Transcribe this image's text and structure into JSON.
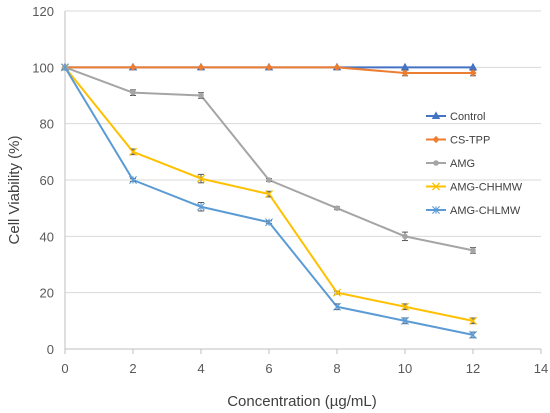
{
  "chart_data": {
    "type": "line",
    "xlabel": "Concentration (µg/mL)",
    "ylabel": "Cell Viability (%)",
    "xlim": [
      0,
      14
    ],
    "ylim": [
      0,
      120
    ],
    "xticks": [
      0,
      2,
      4,
      6,
      8,
      10,
      12,
      14
    ],
    "yticks": [
      0,
      20,
      40,
      60,
      80,
      100,
      120
    ],
    "grid": "horizontal",
    "legend_position": "right",
    "x": [
      0,
      2,
      4,
      6,
      8,
      10,
      12
    ],
    "series": [
      {
        "name": "Control",
        "color": "#4472C4",
        "marker": "triangle",
        "values": [
          100,
          100,
          100,
          100,
          100,
          100,
          100
        ],
        "errors": [
          0,
          0,
          0,
          0,
          0,
          0,
          0
        ]
      },
      {
        "name": "CS-TPP",
        "color": "#ED7D31",
        "marker": "diamond",
        "values": [
          100,
          100,
          100,
          100,
          100,
          98,
          98
        ],
        "errors": [
          0,
          0,
          0,
          0,
          0,
          1,
          1
        ]
      },
      {
        "name": "AMG",
        "color": "#A5A5A5",
        "marker": "circle",
        "values": [
          100,
          91,
          90,
          60,
          50,
          40,
          35
        ],
        "errors": [
          0,
          1,
          1,
          0.5,
          0.5,
          1.5,
          1
        ]
      },
      {
        "name": "AMG-CHHMW",
        "color": "#FFC000",
        "marker": "x",
        "values": [
          100,
          70,
          60.5,
          55,
          20,
          15,
          10
        ],
        "errors": [
          0,
          1,
          1.5,
          1,
          0.5,
          1,
          1
        ]
      },
      {
        "name": "AMG-CHLMW",
        "color": "#5B9BD5",
        "marker": "star",
        "values": [
          100,
          60,
          50.5,
          45,
          15,
          10,
          5
        ],
        "errors": [
          0,
          0.5,
          1.5,
          0.5,
          1,
          1,
          1
        ]
      }
    ]
  }
}
